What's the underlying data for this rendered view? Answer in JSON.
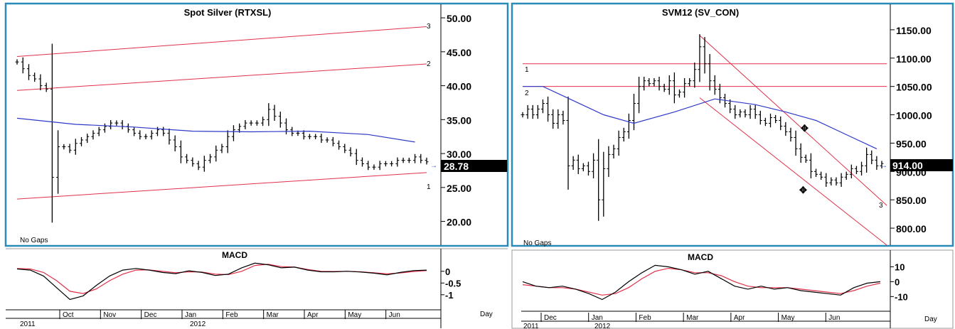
{
  "colors": {
    "frame": "#2a8bb8",
    "bars": "#000000",
    "trend": "#e0304a",
    "ma": "#2f39c8",
    "signal": "#e0304a",
    "macd": "#000000",
    "price_box": "#000000",
    "price_text": "#ffffff",
    "pointer": "#3550d8"
  },
  "left": {
    "title": "Spot  Silver  (RTXSL)",
    "no_gaps": "No Gaps",
    "price_tag": "28.78",
    "line_markers": [
      "3",
      "2",
      "1"
    ],
    "macd_title": "MACD",
    "months": [
      "Oct",
      "Nov",
      "Dec",
      "Jan",
      "Feb",
      "Mar",
      "Apr",
      "May",
      "Jun"
    ],
    "years": [
      "2011",
      "2012"
    ],
    "period": "Day"
  },
  "right": {
    "title": "SVM12  (SV_CON)",
    "no_gaps": "No Gaps",
    "price_tag": "914.00",
    "line_markers": [
      "1",
      "2",
      "3"
    ],
    "macd_title": "MACD",
    "months": [
      "Dec",
      "Jan",
      "Feb",
      "Mar",
      "Apr",
      "May",
      "Jun"
    ],
    "years": [
      "2011",
      "2012"
    ],
    "period": "Day"
  },
  "chart_data": [
    {
      "type": "ohlc",
      "title": "Spot  Silver  (RTXSL)",
      "y_ticks": [
        "50.00",
        "45.00",
        "40.00",
        "35.00",
        "30.00",
        "25.00",
        "20.00"
      ],
      "ylim": [
        16.5,
        52
      ],
      "last_price": 28.78,
      "close": [
        43.5,
        42.5,
        41.5,
        41,
        40,
        39.5,
        26.5,
        31,
        31,
        30.5,
        31.5,
        32,
        32.5,
        33,
        33.5,
        34,
        34.5,
        34.5,
        34,
        33.5,
        33,
        32.5,
        32.5,
        33,
        33.5,
        33,
        32,
        31,
        29.5,
        29,
        28.5,
        28,
        29,
        29.5,
        30.5,
        31,
        32.5,
        33.5,
        34,
        34.5,
        34.5,
        34.5,
        35,
        36.5,
        35.5,
        34.5,
        33.5,
        33,
        33,
        32.5,
        32.5,
        32.5,
        32,
        32,
        31.5,
        31,
        30.5,
        30,
        29,
        28.5,
        28,
        28,
        28.5,
        28.5,
        28.5,
        29,
        29,
        29,
        29.5,
        29,
        28.78
      ],
      "moving_average": [
        {
          "x": 0,
          "y": 35.2
        },
        {
          "x": 10,
          "y": 34.3
        },
        {
          "x": 20,
          "y": 33.9
        },
        {
          "x": 30,
          "y": 33.3
        },
        {
          "x": 40,
          "y": 33.2
        },
        {
          "x": 50,
          "y": 33.3
        },
        {
          "x": 60,
          "y": 32.8
        },
        {
          "x": 68,
          "y": 31.7
        }
      ],
      "trend_lines": [
        {
          "label": "3",
          "from": {
            "x": 0,
            "y": 44.3
          },
          "to": {
            "x": 70,
            "y": 48.7
          }
        },
        {
          "label": "2",
          "from": {
            "x": 0,
            "y": 39.3
          },
          "to": {
            "x": 70,
            "y": 43.2
          }
        },
        {
          "label": "1",
          "from": {
            "x": 0,
            "y": 23.3
          },
          "to": {
            "x": 70,
            "y": 27.2
          }
        }
      ]
    },
    {
      "type": "line",
      "title": "MACD",
      "y_ticks": [
        "0",
        "-0.5",
        "-1"
      ],
      "ylim": [
        -1.4,
        0.6
      ],
      "series": [
        {
          "role": "macd",
          "values": [
            0.1,
            0.05,
            -0.2,
            -0.7,
            -1.2,
            -1.05,
            -0.6,
            -0.2,
            0.05,
            0.12,
            0.05,
            -0.05,
            -0.1,
            0.02,
            -0.05,
            -0.18,
            -0.12,
            0.15,
            0.35,
            0.28,
            0.15,
            0.18,
            0.05,
            -0.02,
            -0.02,
            0.0,
            -0.03,
            -0.08,
            -0.15,
            -0.05,
            0.03,
            0.05
          ]
        },
        {
          "role": "signal",
          "values": [
            0.12,
            0.1,
            -0.05,
            -0.4,
            -0.85,
            -0.95,
            -0.75,
            -0.4,
            -0.12,
            0.05,
            0.06,
            0.0,
            -0.06,
            -0.02,
            -0.03,
            -0.12,
            -0.14,
            0.0,
            0.25,
            0.3,
            0.2,
            0.18,
            0.08,
            0.0,
            -0.01,
            0.0,
            -0.02,
            -0.06,
            -0.11,
            -0.07,
            -0.01,
            0.03
          ]
        }
      ]
    },
    {
      "type": "ohlc",
      "title": "SVM12  (SV_CON)",
      "y_ticks": [
        "1150.00",
        "1100.00",
        "1050.00",
        "1000.00",
        "950.00",
        "900.00",
        "850.00",
        "800.00"
      ],
      "ylim": [
        770,
        1195
      ],
      "last_price": 914.0,
      "close": [
        1000,
        1010,
        1000,
        1010,
        1020,
        1000,
        985,
        1000,
        990,
        910,
        920,
        905,
        910,
        900,
        920,
        850,
        905,
        930,
        940,
        960,
        970,
        990,
        1020,
        1050,
        1060,
        1055,
        1060,
        1050,
        1045,
        1060,
        1035,
        1040,
        1055,
        1060,
        1080,
        1120,
        1090,
        1060,
        1045,
        1030,
        1020,
        1010,
        1000,
        1005,
        1000,
        1010,
        1000,
        990,
        985,
        995,
        990,
        980,
        970,
        960,
        940,
        925,
        920,
        900,
        895,
        890,
        880,
        885,
        880,
        890,
        895,
        905,
        900,
        910,
        930,
        920,
        910,
        914
      ],
      "moving_average": [
        {
          "x": 0,
          "y": 1050
        },
        {
          "x": 4,
          "y": 1050
        },
        {
          "x": 10,
          "y": 1025
        },
        {
          "x": 16,
          "y": 1000
        },
        {
          "x": 22,
          "y": 985
        },
        {
          "x": 30,
          "y": 1005
        },
        {
          "x": 38,
          "y": 1028
        },
        {
          "x": 46,
          "y": 1018
        },
        {
          "x": 52,
          "y": 1005
        },
        {
          "x": 58,
          "y": 990
        },
        {
          "x": 64,
          "y": 965
        },
        {
          "x": 70,
          "y": 940
        }
      ],
      "trend_lines": [
        {
          "label": "1",
          "from": {
            "x": 0,
            "y": 1090
          },
          "to": {
            "x": 72,
            "y": 1090
          }
        },
        {
          "label": "2",
          "from": {
            "x": 0,
            "y": 1050
          },
          "to": {
            "x": 72,
            "y": 1050
          }
        },
        {
          "label": "3",
          "from": {
            "x": 35,
            "y": 1140
          },
          "to": {
            "x": 72,
            "y": 840
          }
        },
        {
          "label": "",
          "from": {
            "x": 35,
            "y": 1030
          },
          "to": {
            "x": 72,
            "y": 770
          }
        }
      ]
    },
    {
      "type": "line",
      "title": "MACD",
      "y_ticks": [
        "10",
        "0",
        "-10"
      ],
      "ylim": [
        -17,
        15
      ],
      "series": [
        {
          "role": "macd",
          "values": [
            0,
            -3,
            -4,
            -3,
            -5,
            -8,
            -12,
            -7,
            0,
            6,
            11,
            10,
            8,
            5,
            7,
            2,
            -3,
            -5,
            -3,
            -5,
            -4,
            -6,
            -7,
            -8,
            -9,
            -4,
            -1,
            0
          ]
        },
        {
          "role": "signal",
          "values": [
            -2,
            -3,
            -4,
            -4,
            -5,
            -7,
            -9,
            -8,
            -4,
            2,
            7,
            9,
            8,
            6,
            6,
            4,
            0,
            -3,
            -4,
            -4,
            -4,
            -5,
            -6,
            -7,
            -8,
            -6,
            -3,
            -1
          ]
        }
      ]
    }
  ]
}
